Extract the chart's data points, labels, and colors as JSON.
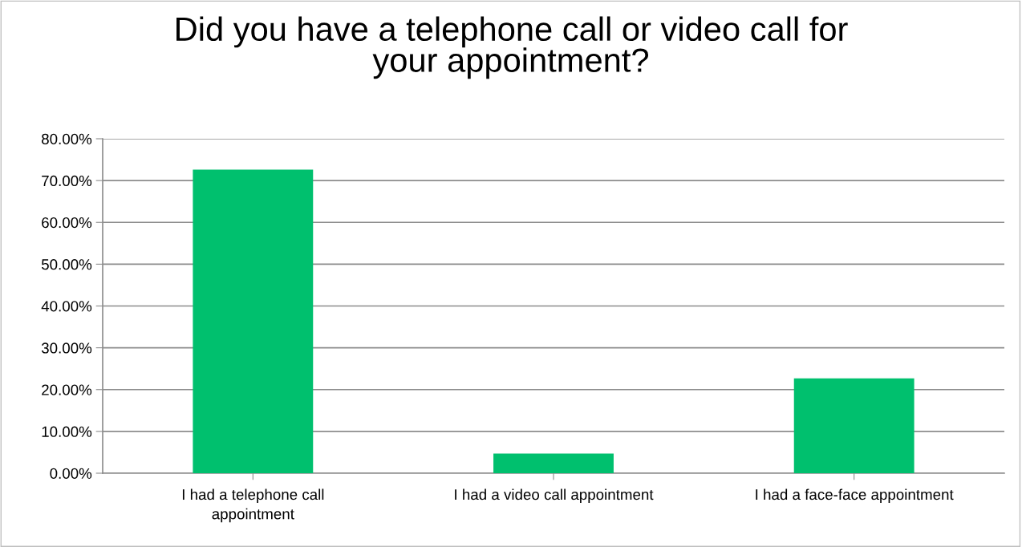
{
  "chart_data": {
    "type": "bar",
    "title": "Did you have a telephone call or video call for\nyour appointment?",
    "categories": [
      "I had a telephone call\nappointment",
      "I had a video call appointment",
      "I had a face-face appointment"
    ],
    "values": [
      72.6,
      4.7,
      22.7
    ],
    "color": "#00c06e",
    "ylim": [
      0,
      80
    ],
    "yticks": [
      {
        "value": 0,
        "label": "0.00%"
      },
      {
        "value": 10,
        "label": "10.00%"
      },
      {
        "value": 20,
        "label": "20.00%"
      },
      {
        "value": 30,
        "label": "30.00%"
      },
      {
        "value": 40,
        "label": "40.00%"
      },
      {
        "value": 50,
        "label": "50.00%"
      },
      {
        "value": 60,
        "label": "60.00%"
      },
      {
        "value": 70,
        "label": "70.00%"
      },
      {
        "value": 80,
        "label": "80.00%"
      }
    ],
    "grid": "y"
  }
}
